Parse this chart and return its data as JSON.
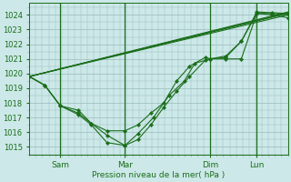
{
  "bg_color": "#cce8e8",
  "grid_color": "#99bbbb",
  "line_color": "#1a6e1a",
  "marker_color": "#1a6e1a",
  "xlabel": "Pression niveau de la mer( hPa )",
  "ylim": [
    1014.5,
    1024.8
  ],
  "yticks": [
    1015,
    1016,
    1017,
    1018,
    1019,
    1020,
    1021,
    1022,
    1023,
    1024
  ],
  "xtick_labels": [
    "Sam",
    "Mar",
    "Dim",
    "Lun"
  ],
  "xtick_pos": [
    0.12,
    0.37,
    0.7,
    0.88
  ],
  "xlim": [
    0.0,
    1.0
  ],
  "vline_positions": [
    0.12,
    0.37,
    0.7,
    0.88
  ],
  "trend1_x": [
    0.0,
    1.0
  ],
  "trend1_y": [
    1019.8,
    1024.0
  ],
  "trend2_x": [
    0.0,
    1.0
  ],
  "trend2_y": [
    1019.8,
    1024.1
  ],
  "trend3_x": [
    0.0,
    1.0
  ],
  "trend3_y": [
    1019.8,
    1024.2
  ],
  "trend4_x": [
    0.0,
    1.0
  ],
  "trend4_y": [
    1019.8,
    1024.15
  ],
  "wavy1_x": [
    0.0,
    0.06,
    0.12,
    0.19,
    0.24,
    0.3,
    0.37,
    0.42,
    0.47,
    0.52,
    0.57,
    0.62,
    0.68,
    0.7,
    0.76,
    0.82,
    0.88,
    0.94,
    1.0
  ],
  "wavy1_y": [
    1019.8,
    1019.2,
    1017.8,
    1017.5,
    1016.6,
    1016.1,
    1016.1,
    1016.5,
    1017.3,
    1018.0,
    1019.5,
    1020.5,
    1021.1,
    1021.0,
    1021.1,
    1022.2,
    1024.1,
    1024.1,
    1024.0
  ],
  "wavy2_x": [
    0.0,
    0.06,
    0.12,
    0.19,
    0.24,
    0.3,
    0.37,
    0.42,
    0.47,
    0.52,
    0.57,
    0.62,
    0.68,
    0.7,
    0.76,
    0.82,
    0.88,
    0.94,
    1.0
  ],
  "wavy2_y": [
    1019.8,
    1019.2,
    1017.8,
    1017.3,
    1016.6,
    1015.8,
    1015.1,
    1015.5,
    1016.5,
    1017.7,
    1018.8,
    1019.8,
    1020.9,
    1021.0,
    1021.2,
    1022.2,
    1024.2,
    1024.15,
    1024.1
  ],
  "wavy3_x": [
    0.0,
    0.06,
    0.12,
    0.19,
    0.24,
    0.3,
    0.37,
    0.42,
    0.48,
    0.54,
    0.6,
    0.64,
    0.7,
    0.76,
    0.82,
    0.88,
    0.94,
    1.0
  ],
  "wavy3_y": [
    1019.8,
    1019.2,
    1017.8,
    1017.2,
    1016.5,
    1015.3,
    1015.1,
    1015.9,
    1017.0,
    1018.5,
    1019.5,
    1020.7,
    1021.0,
    1021.0,
    1021.0,
    1024.1,
    1024.0,
    1023.8
  ]
}
